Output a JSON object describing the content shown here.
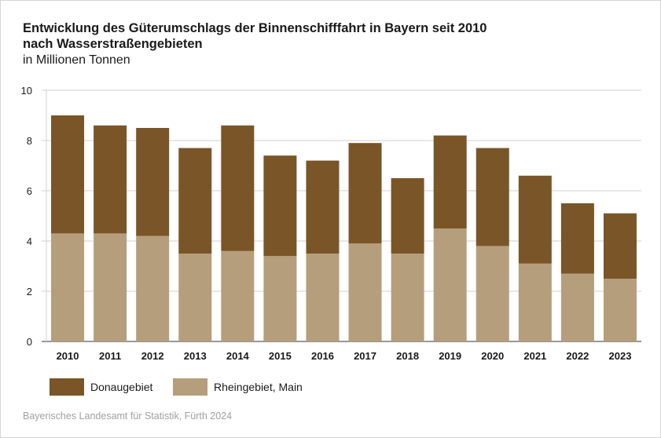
{
  "chart_data": {
    "type": "bar",
    "stacked": true,
    "title": "Entwicklung des Güterumschlags der Binnenschifffahrt in Bayern seit 2010",
    "subtitle": "nach Wasserstraßengebieten",
    "ylabel": "in Millionen Tonnen",
    "xlabel": "",
    "ylim": [
      0,
      10
    ],
    "yticks": [
      0,
      2,
      4,
      6,
      8,
      10
    ],
    "grid": true,
    "legend_position": "bottom-left",
    "categories": [
      "2010",
      "2011",
      "2012",
      "2013",
      "2014",
      "2015",
      "2016",
      "2017",
      "2018",
      "2019",
      "2020",
      "2021",
      "2022",
      "2023"
    ],
    "series": [
      {
        "name": "Rheingebiet, Main",
        "color": "#b59e7b",
        "values": [
          4.3,
          4.3,
          4.2,
          3.5,
          3.6,
          3.4,
          3.5,
          3.9,
          3.5,
          4.5,
          3.8,
          3.1,
          2.7,
          2.5
        ]
      },
      {
        "name": "Donaugebiet",
        "color": "#7a5528",
        "values": [
          4.7,
          4.3,
          4.3,
          4.2,
          5.0,
          4.0,
          3.7,
          4.0,
          3.0,
          3.7,
          3.9,
          3.5,
          2.8,
          2.6
        ]
      }
    ],
    "source": "Bayerisches Landesamt für Statistik, Fürth 2024"
  }
}
